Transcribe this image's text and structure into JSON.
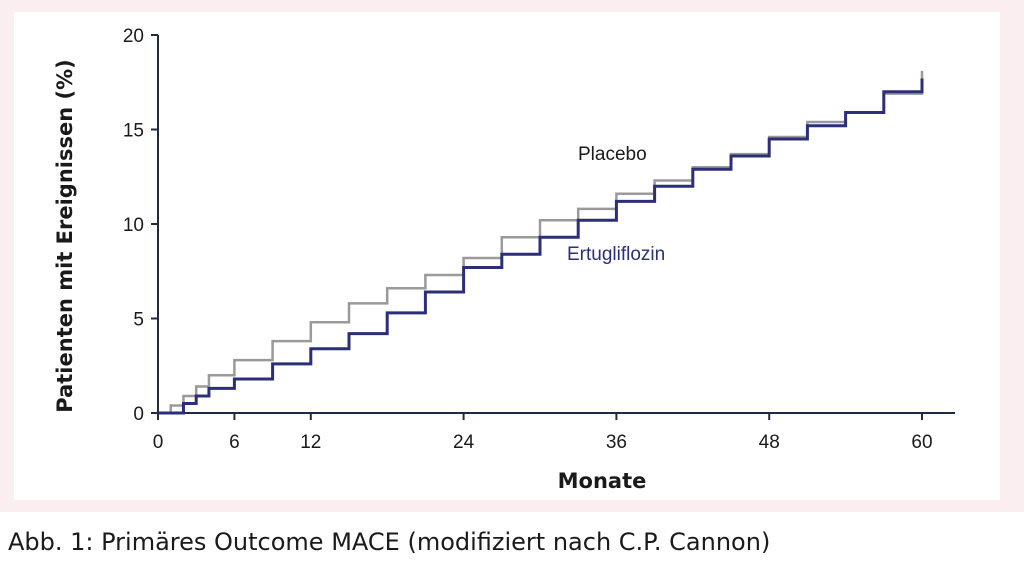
{
  "chart_data": {
    "type": "line",
    "title": "",
    "xlabel": "Monate",
    "ylabel": "Patienten mit Ereignissen (%)",
    "xlim": [
      0,
      60
    ],
    "ylim": [
      0,
      20
    ],
    "x_ticks": [
      0,
      6,
      12,
      24,
      36,
      48,
      60
    ],
    "y_ticks": [
      0,
      5,
      10,
      15,
      20
    ],
    "grid": false,
    "series": [
      {
        "name": "Placebo",
        "color": "#9a9a9a",
        "points": [
          [
            0,
            0
          ],
          [
            1,
            0.4
          ],
          [
            2,
            0.9
          ],
          [
            3,
            1.4
          ],
          [
            4,
            2.0
          ],
          [
            6,
            2.8
          ],
          [
            9,
            3.8
          ],
          [
            12,
            4.8
          ],
          [
            15,
            5.8
          ],
          [
            18,
            6.6
          ],
          [
            21,
            7.3
          ],
          [
            24,
            8.2
          ],
          [
            27,
            9.3
          ],
          [
            30,
            10.2
          ],
          [
            33,
            10.8
          ],
          [
            36,
            11.6
          ],
          [
            39,
            12.3
          ],
          [
            42,
            13.0
          ],
          [
            45,
            13.7
          ],
          [
            48,
            14.6
          ],
          [
            51,
            15.4
          ],
          [
            54,
            15.9
          ],
          [
            57,
            16.9
          ],
          [
            60,
            18.1
          ]
        ]
      },
      {
        "name": "Ertugliflozin",
        "color": "#2b2f7a",
        "points": [
          [
            0,
            0
          ],
          [
            2,
            0.5
          ],
          [
            3,
            0.9
          ],
          [
            4,
            1.3
          ],
          [
            6,
            1.8
          ],
          [
            9,
            2.6
          ],
          [
            12,
            3.4
          ],
          [
            15,
            4.2
          ],
          [
            18,
            5.3
          ],
          [
            21,
            6.4
          ],
          [
            24,
            7.7
          ],
          [
            27,
            8.4
          ],
          [
            30,
            9.3
          ],
          [
            33,
            10.2
          ],
          [
            36,
            11.2
          ],
          [
            39,
            12.0
          ],
          [
            42,
            12.9
          ],
          [
            45,
            13.6
          ],
          [
            48,
            14.5
          ],
          [
            51,
            15.2
          ],
          [
            54,
            15.9
          ],
          [
            57,
            17.0
          ],
          [
            60,
            17.7
          ]
        ]
      }
    ]
  },
  "caption": "Abb. 1: Primäres Outcome MACE (modifiziert nach C.P. Cannon)"
}
